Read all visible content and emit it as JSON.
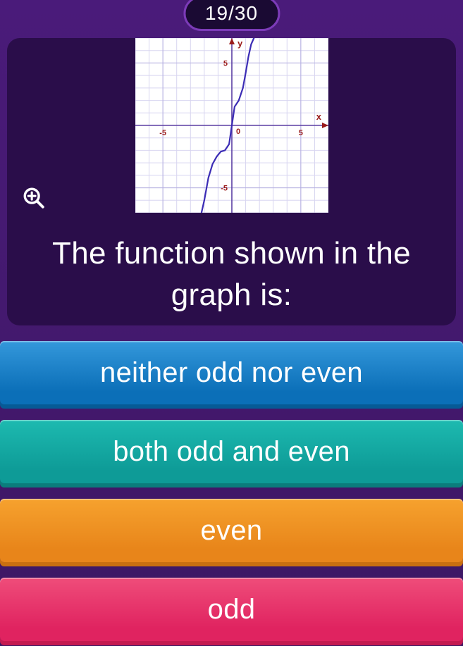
{
  "progress": {
    "current": 19,
    "total": 30,
    "display": "19/30"
  },
  "question": {
    "text": "The function shown in the graph is:"
  },
  "graph": {
    "type": "line",
    "axis_label_x": "x",
    "axis_label_y": "y",
    "xlim": [
      -7,
      7
    ],
    "ylim": [
      -7,
      7
    ],
    "tick_step": 1,
    "labeled_ticks": [
      -5,
      5
    ],
    "background_color": "#ffffff",
    "minor_grid_color": "#d8d5f0",
    "major_grid_color": "#b4aee0",
    "axis_color": "#5c3fa3",
    "curve_color": "#3b2cb5",
    "label_color": "#9a1b1b",
    "curve_width": 2.2,
    "tick_fontsize": 11,
    "label_fontsize": 13,
    "curve_points_x": [
      -2.2,
      -2.0,
      -1.7,
      -1.4,
      -1.1,
      -0.8,
      -0.5,
      -0.2,
      0,
      0.2,
      0.5,
      0.8,
      1.0,
      1.2,
      1.4,
      1.6,
      1.8
    ],
    "curve_points_y": [
      -7,
      -6,
      -4.2,
      -3.1,
      -2.5,
      -2.1,
      -2.0,
      -1.5,
      0,
      1.5,
      2.0,
      3.0,
      4.2,
      5.5,
      6.5,
      7,
      7.5
    ]
  },
  "answers": [
    {
      "id": "a",
      "label": "neither odd nor even",
      "bg_top": "#3498db",
      "bg_bottom": "#0b6fb8",
      "shadow": "#065a96"
    },
    {
      "id": "b",
      "label": "both odd and even",
      "bg_top": "#1dbab0",
      "bg_bottom": "#0e9b97",
      "shadow": "#0b7d7c"
    },
    {
      "id": "c",
      "label": "even",
      "bg_top": "#f6a22e",
      "bg_bottom": "#e8851a",
      "shadow": "#c96f10"
    },
    {
      "id": "d",
      "label": "odd",
      "bg_top": "#ef4d7a",
      "bg_bottom": "#e02360",
      "shadow": "#c41a50"
    }
  ],
  "colors": {
    "page_bg_top": "#4a1b7a",
    "page_bg_bottom": "#3d1763",
    "card_bg": "#2a0d4a",
    "pill_bg": "#1a0a33",
    "pill_border": "#7c3bb8",
    "text": "#ffffff"
  }
}
